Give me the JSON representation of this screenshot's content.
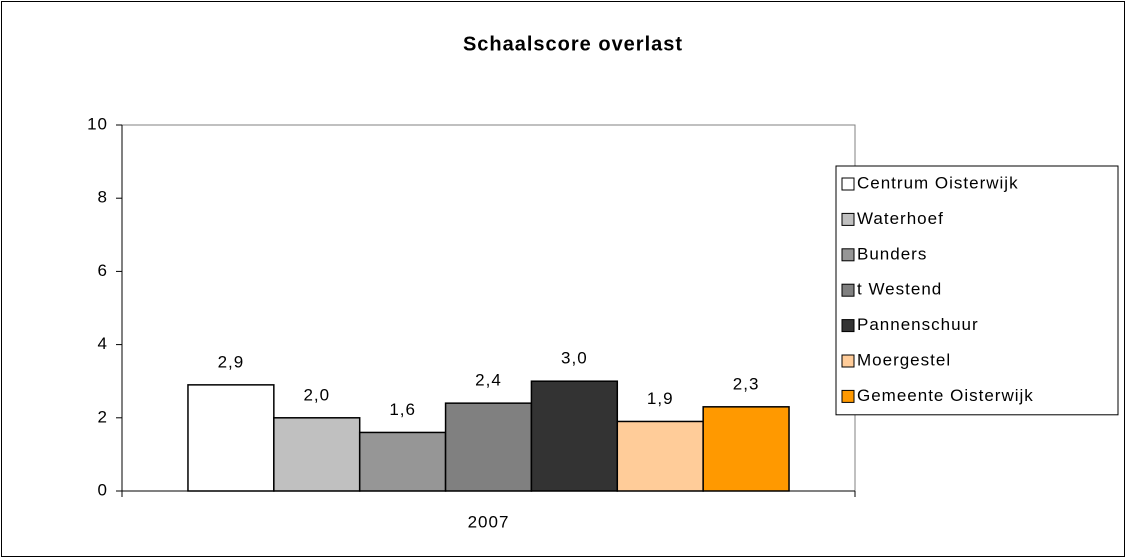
{
  "chart_data": {
    "type": "bar",
    "title": "Schaalscore overlast",
    "categories": [
      "2007"
    ],
    "series": [
      {
        "name": "Centrum Oisterwijk",
        "color": "#ffffff",
        "values": [
          2.9
        ],
        "value_labels": [
          "2,9"
        ]
      },
      {
        "name": "Waterhoef",
        "color": "#c0c0c0",
        "values": [
          2.0
        ],
        "value_labels": [
          "2,0"
        ]
      },
      {
        "name": "Bunders",
        "color": "#969696",
        "values": [
          1.6
        ],
        "value_labels": [
          "1,6"
        ]
      },
      {
        "name": "t Westend",
        "color": "#808080",
        "values": [
          2.4
        ],
        "value_labels": [
          "2,4"
        ]
      },
      {
        "name": "Pannenschuur",
        "color": "#333333",
        "values": [
          3.0
        ],
        "value_labels": [
          "3,0"
        ]
      },
      {
        "name": "Moergestel",
        "color": "#ffcc99",
        "values": [
          1.9
        ],
        "value_labels": [
          "1,9"
        ]
      },
      {
        "name": "Gemeente Oisterwijk",
        "color": "#ff9900",
        "values": [
          2.3
        ],
        "value_labels": [
          "2,3"
        ]
      }
    ],
    "ylim": [
      0,
      10
    ],
    "yticks": [
      0,
      2,
      4,
      6,
      8,
      10
    ],
    "grid": false,
    "legend": "right"
  }
}
